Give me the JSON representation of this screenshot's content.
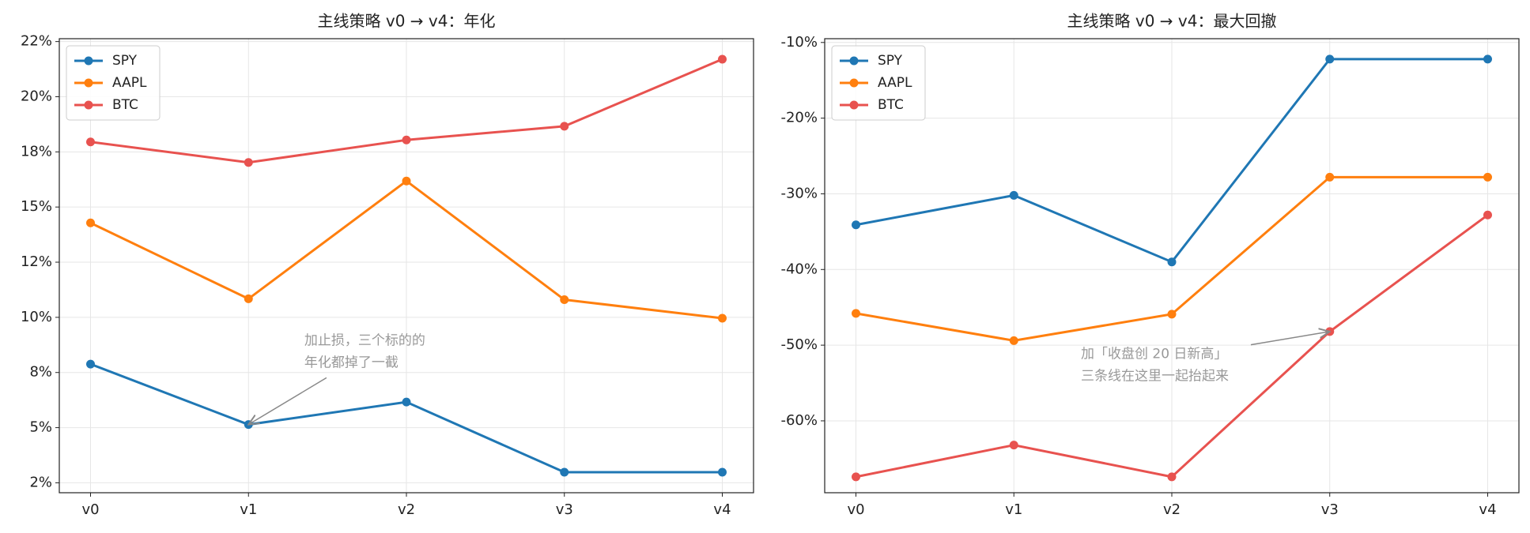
{
  "chart_data": [
    {
      "type": "line",
      "title": "主线策略 v0 → v4：年化",
      "categories": [
        "v0",
        "v1",
        "v2",
        "v3",
        "v4"
      ],
      "series": [
        {
          "name": "SPY",
          "color": "#1f77b4",
          "values": [
            7.88,
            5.14,
            6.16,
            2.98,
            2.98
          ]
        },
        {
          "name": "AAPL",
          "color": "#ff7f0e",
          "values": [
            14.28,
            10.84,
            16.18,
            10.8,
            9.96
          ]
        },
        {
          "name": "BTC",
          "color": "#e8524f",
          "values": [
            17.95,
            17.02,
            18.04,
            18.66,
            21.7
          ]
        }
      ],
      "ylim": [
        2.05,
        22.63
      ],
      "yticks": [
        {
          "value": 2.5,
          "label": "2%"
        },
        {
          "value": 5,
          "label": "5%"
        },
        {
          "value": 7.5,
          "label": "8%"
        },
        {
          "value": 10,
          "label": "10%"
        },
        {
          "value": 12.5,
          "label": "12%"
        },
        {
          "value": 15,
          "label": "15%"
        },
        {
          "value": 17.5,
          "label": "18%"
        },
        {
          "value": 20,
          "label": "20%"
        },
        {
          "value": 22.5,
          "label": "22%"
        }
      ],
      "grid": true,
      "legend": "upper left",
      "annotation": [
        "加止损，三个标的的",
        "年化都掉了一截"
      ]
    },
    {
      "type": "line",
      "title": "主线策略 v0 → v4：最大回撤",
      "categories": [
        "v0",
        "v1",
        "v2",
        "v3",
        "v4"
      ],
      "series": [
        {
          "name": "SPY",
          "color": "#1f77b4",
          "values": [
            -34.1,
            -30.2,
            -39.0,
            -12.2,
            -12.2
          ]
        },
        {
          "name": "AAPL",
          "color": "#ff7f0e",
          "values": [
            -45.8,
            -49.4,
            -45.9,
            -27.8,
            -27.8
          ]
        },
        {
          "name": "BTC",
          "color": "#e8524f",
          "values": [
            -67.4,
            -63.2,
            -67.4,
            -48.2,
            -32.8
          ]
        }
      ],
      "ylim": [
        -69.5,
        -9.5
      ],
      "yticks": [
        {
          "value": -60,
          "label": "-60%"
        },
        {
          "value": -50,
          "label": "-50%"
        },
        {
          "value": -40,
          "label": "-40%"
        },
        {
          "value": -30,
          "label": "-30%"
        },
        {
          "value": -20,
          "label": "-20%"
        },
        {
          "value": -10,
          "label": "-10%"
        }
      ],
      "grid": true,
      "legend": "upper left",
      "annotation": [
        "加「收盘创 20 日新高」",
        "三条线在这里一起抬起来"
      ]
    }
  ]
}
